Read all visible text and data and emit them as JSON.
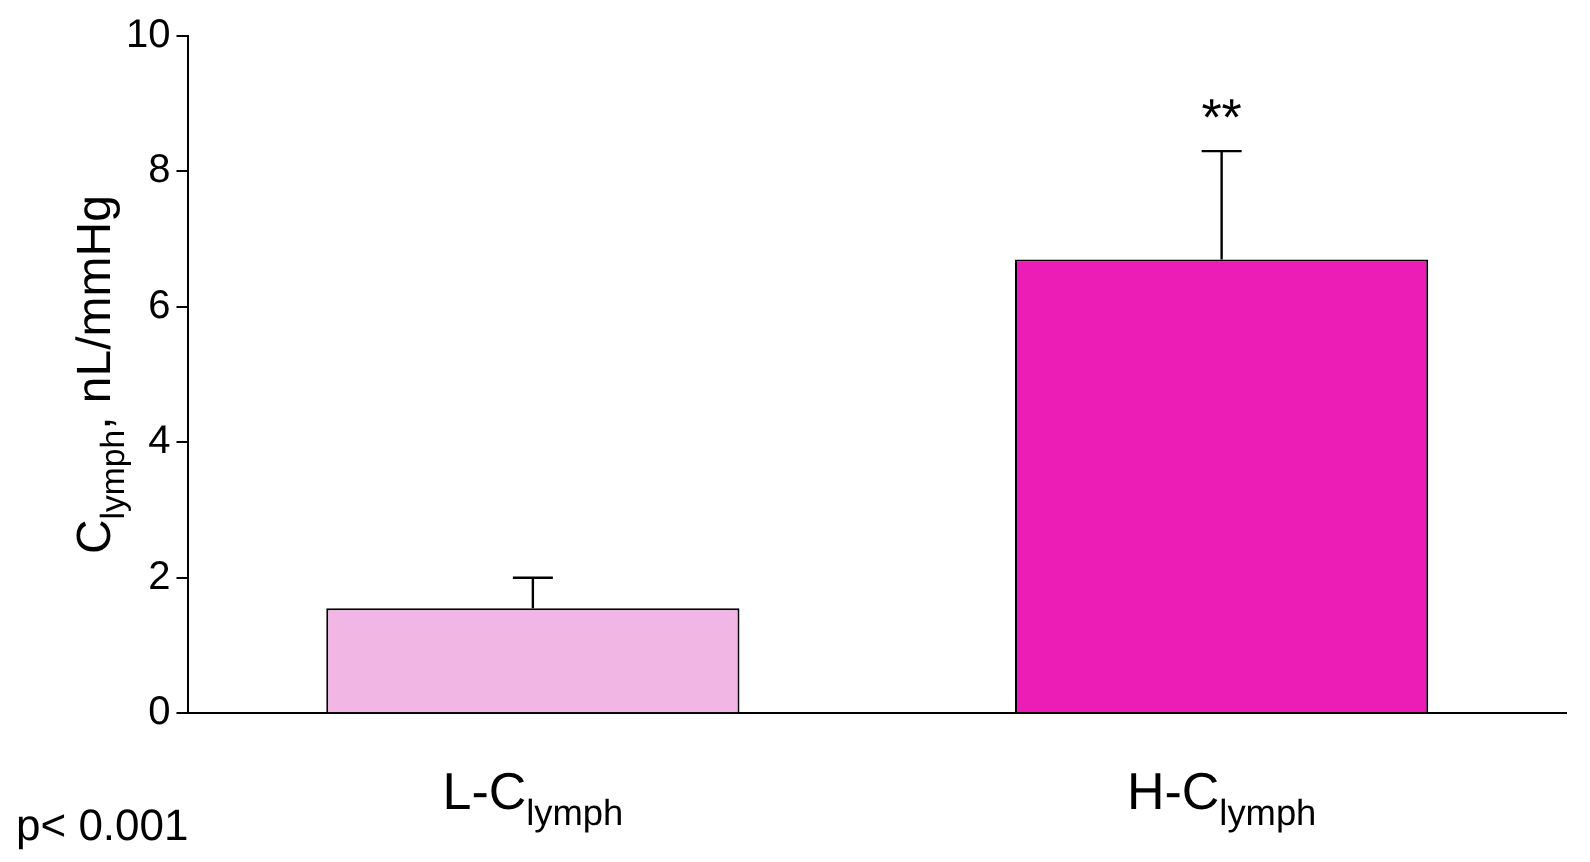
{
  "chart_data": {
    "type": "bar",
    "ylabel": "C$_{lymph}$, nL/mmHg",
    "categories": [
      "L-C$_{lymph}$",
      "H-C$_{lymph}$"
    ],
    "values": [
      1.55,
      6.7
    ],
    "colors": [
      "#f2b6e4",
      "#ec1cb6"
    ],
    "errors": [
      [
        1.55,
        2.0
      ],
      [
        6.7,
        8.3
      ]
    ],
    "ylim": [
      0,
      10
    ],
    "yticks": [
      0,
      2,
      4,
      6,
      8,
      10
    ],
    "grid": false,
    "legend": false,
    "annotations": [
      {
        "text": "**",
        "x": "H-C$_{lymph}$",
        "y": 8.3
      },
      "p< 0.001"
    ]
  }
}
